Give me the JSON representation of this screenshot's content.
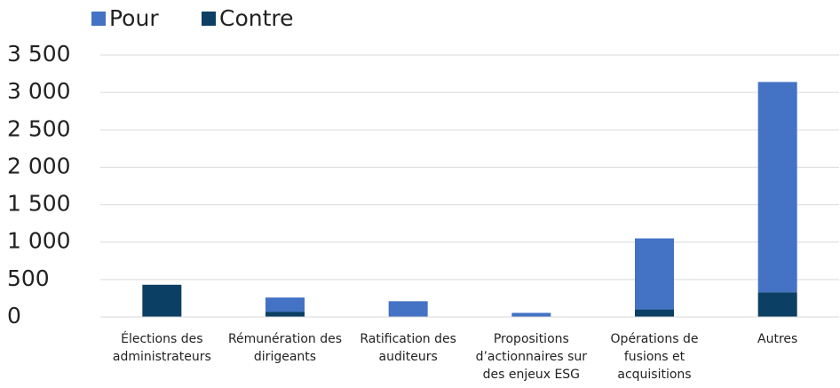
{
  "chart_data": {
    "type": "stacked_bar",
    "categories": [
      "Élections des administrateurs",
      "Rémunération des dirigeants",
      "Ratification des auditeurs",
      "Propositions d’actionnaires sur des enjeux ESG",
      "Opérations de fusions et acquisitions",
      "Autres"
    ],
    "series": [
      {
        "name": "Pour",
        "color": "#4472c4",
        "values": [
          0,
          190,
          210,
          55,
          950,
          2810
        ]
      },
      {
        "name": "Contre",
        "color": "#0b3f63",
        "values": [
          430,
          70,
          0,
          0,
          100,
          330
        ]
      }
    ],
    "ylim": [
      0,
      3500
    ],
    "yticks": [
      0,
      500,
      {
        "value": 1000,
        "label": "1 000"
      },
      {
        "value": 1500,
        "label": "1 500"
      },
      {
        "value": 2000,
        "label": "2 000"
      },
      {
        "value": 2500,
        "label": "2 500"
      },
      {
        "value": 3000,
        "label": "3 000"
      },
      {
        "value": 3500,
        "label": "3 500"
      }
    ],
    "grid": true,
    "legend": "top-left"
  }
}
